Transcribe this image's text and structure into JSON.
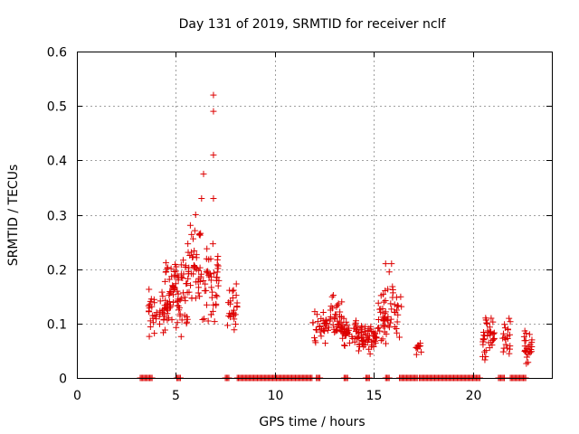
{
  "chart_data": {
    "type": "scatter",
    "title": "Day 131 of 2019, SRMTID for receiver nclf",
    "xlabel": "GPS time / hours",
    "ylabel": "SRMTID / TECUs",
    "xlim": [
      0,
      24
    ],
    "ylim": [
      0,
      0.6
    ],
    "xticks": [
      0,
      5,
      10,
      15,
      20
    ],
    "xtick_labels": [
      "0",
      "5",
      "10",
      "15",
      "20"
    ],
    "yticks": [
      0,
      0.1,
      0.2,
      0.3,
      0.4,
      0.5,
      0.6
    ],
    "ytick_labels": [
      "0",
      "0.1",
      "0.2",
      "0.3",
      "0.4",
      "0.5",
      "0.6"
    ],
    "grid": true,
    "marker": "+",
    "color": "#dd0000",
    "clusters": [
      {
        "x_range": [
          3.6,
          4.6
        ],
        "y_range": [
          0.07,
          0.17
        ],
        "n": 45
      },
      {
        "x_range": [
          4.4,
          5.0
        ],
        "y_range": [
          0.08,
          0.24
        ],
        "n": 40
      },
      {
        "x_range": [
          5.0,
          5.6
        ],
        "y_range": [
          0.07,
          0.25
        ],
        "n": 40
      },
      {
        "x_range": [
          5.6,
          6.3
        ],
        "y_range": [
          0.08,
          0.3
        ],
        "n": 45
      },
      {
        "x_range": [
          6.3,
          7.2
        ],
        "y_range": [
          0.07,
          0.29
        ],
        "n": 45
      },
      {
        "x_range": [
          7.6,
          8.1
        ],
        "y_range": [
          0.08,
          0.18
        ],
        "n": 25
      },
      {
        "x_range": [
          11.9,
          12.6
        ],
        "y_range": [
          0.06,
          0.13
        ],
        "n": 30
      },
      {
        "x_range": [
          12.6,
          13.4
        ],
        "y_range": [
          0.06,
          0.16
        ],
        "n": 40
      },
      {
        "x_range": [
          13.4,
          14.2
        ],
        "y_range": [
          0.05,
          0.12
        ],
        "n": 40
      },
      {
        "x_range": [
          14.2,
          15.2
        ],
        "y_range": [
          0.04,
          0.1
        ],
        "n": 55
      },
      {
        "x_range": [
          15.2,
          16.0
        ],
        "y_range": [
          0.05,
          0.2
        ],
        "n": 45
      },
      {
        "x_range": [
          16.0,
          16.4
        ],
        "y_range": [
          0.06,
          0.17
        ],
        "n": 15
      },
      {
        "x_range": [
          17.1,
          17.4
        ],
        "y_range": [
          0.04,
          0.07
        ],
        "n": 10
      },
      {
        "x_range": [
          20.5,
          21.1
        ],
        "y_range": [
          0.03,
          0.13
        ],
        "n": 40
      },
      {
        "x_range": [
          21.5,
          21.9
        ],
        "y_range": [
          0.03,
          0.12
        ],
        "n": 20
      },
      {
        "x_range": [
          22.6,
          23.0
        ],
        "y_range": [
          0.02,
          0.09
        ],
        "n": 25
      }
    ],
    "outliers": [
      {
        "x": 6.9,
        "y": 0.52
      },
      {
        "x": 6.9,
        "y": 0.49
      },
      {
        "x": 6.9,
        "y": 0.41
      },
      {
        "x": 6.4,
        "y": 0.375
      },
      {
        "x": 6.9,
        "y": 0.33
      },
      {
        "x": 6.3,
        "y": 0.33
      },
      {
        "x": 6.0,
        "y": 0.3
      },
      {
        "x": 15.9,
        "y": 0.21
      },
      {
        "x": 15.6,
        "y": 0.21
      }
    ],
    "zero_segments": [
      [
        3.2,
        3.8
      ],
      [
        5.05,
        5.25
      ],
      [
        7.5,
        7.7
      ],
      [
        8.1,
        11.9
      ],
      [
        12.1,
        12.3
      ],
      [
        13.5,
        13.7
      ],
      [
        14.6,
        14.8
      ],
      [
        15.6,
        15.8
      ],
      [
        16.3,
        17.2
      ],
      [
        17.3,
        20.4
      ],
      [
        21.3,
        21.6
      ],
      [
        21.9,
        22.7
      ]
    ]
  }
}
